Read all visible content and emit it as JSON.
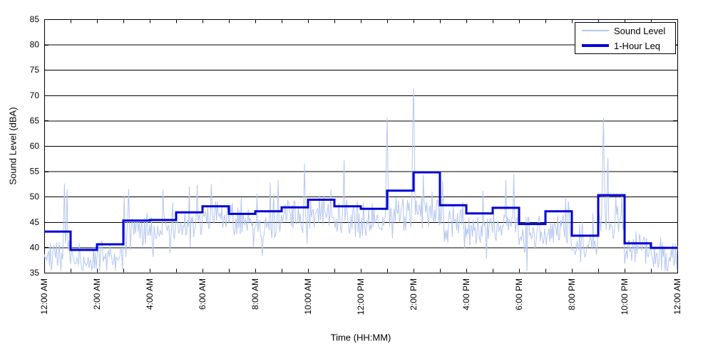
{
  "chart_data": {
    "type": "line",
    "title": "",
    "xlabel": "Time (HH:MM)",
    "ylabel": "Sound Level (dBA)",
    "ylim": [
      35,
      85
    ],
    "ytick_step": 5,
    "ytick_labels": [
      "35",
      "40",
      "45",
      "50",
      "55",
      "60",
      "65",
      "70",
      "75",
      "80",
      "85"
    ],
    "xlim_hours": [
      0,
      24
    ],
    "xtick_labels": [
      "12:00 AM",
      "2:00 AM",
      "4:00 AM",
      "6:00 AM",
      "8:00 AM",
      "10:00 AM",
      "12:00 PM",
      "2:00 PM",
      "4:00 PM",
      "6:00 PM",
      "8:00 PM",
      "10:00 PM",
      "12:00 AM"
    ],
    "xtick_label_every_hours": 2,
    "minor_tick_every_hours": 1,
    "grid": "horizontal-only",
    "legend_position": "top-right",
    "series": [
      {
        "name": "Sound Level",
        "color": "#B4C6F0",
        "kind": "noisy-minute-trace",
        "hourly_median_dBA": [
          38.5,
          37.5,
          38.0,
          43.5,
          43.5,
          44.5,
          45.5,
          44.5,
          44.5,
          45.5,
          46.5,
          45.5,
          45.5,
          47.0,
          47.0,
          45.5,
          44.0,
          44.5,
          42.5,
          43.5,
          40.5,
          45.0,
          40.0,
          38.5
        ],
        "noise_sd_dBA": 2.3,
        "min_clamp_dBA": 35.4,
        "spikes_hour_value": [
          [
            0.75,
            52.6
          ],
          [
            0.85,
            51.5
          ],
          [
            3.2,
            51.5
          ],
          [
            5.5,
            52.0
          ],
          [
            8.85,
            53.3
          ],
          [
            9.85,
            56.5
          ],
          [
            11.35,
            57.2
          ],
          [
            13.0,
            65.6
          ],
          [
            14.0,
            71.4
          ],
          [
            17.5,
            53.3
          ],
          [
            17.8,
            54.4
          ],
          [
            21.2,
            65.5
          ],
          [
            21.35,
            57.5
          ]
        ],
        "prng_seed": 42
      },
      {
        "name": "1-Hour Leq",
        "color": "#0000D6",
        "kind": "hourly-step",
        "hourly_values_dBA": [
          43.1,
          39.5,
          40.6,
          45.3,
          45.4,
          46.9,
          48.1,
          46.6,
          47.1,
          47.9,
          49.4,
          48.1,
          47.6,
          51.2,
          54.8,
          48.3,
          46.7,
          47.8,
          44.6,
          47.1,
          42.3,
          50.3,
          40.8,
          39.9
        ]
      }
    ]
  },
  "legend": {
    "items": [
      {
        "label": "Sound Level"
      },
      {
        "label": "1-Hour Leq"
      }
    ]
  },
  "axes_text": {
    "x_label": "Time (HH:MM)",
    "y_label": "Sound Level (dBA)"
  },
  "colors": {
    "sound_level_line": "#B4C6F0",
    "leq_line": "#0000D6",
    "axis_and_grid": "#000000",
    "background": "#FFFFFF"
  }
}
